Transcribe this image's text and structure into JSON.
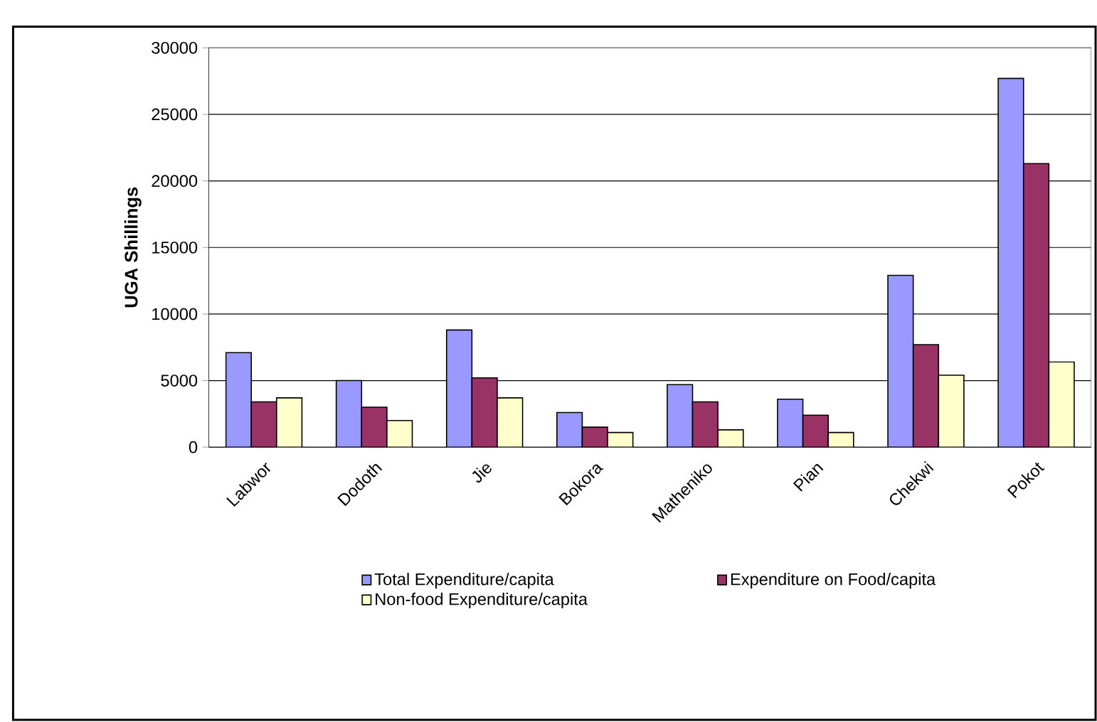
{
  "chart_data": {
    "type": "bar",
    "ylabel": "UGA Shillings",
    "categories": [
      "Labwor",
      "Dodoth",
      "Jie",
      "Bokora",
      "Matheniko",
      "Pian",
      "Chekwi",
      "Pokot"
    ],
    "series": [
      {
        "name": "Total Expenditure/capita",
        "color": "#9999ff",
        "values": [
          7100,
          5000,
          8800,
          2600,
          4700,
          3600,
          12900,
          27700
        ]
      },
      {
        "name": "Expenditure on Food/capita",
        "color": "#993366",
        "values": [
          3400,
          3000,
          5200,
          1500,
          3400,
          2400,
          7700,
          21300
        ]
      },
      {
        "name": "Non-food Expenditure/capita",
        "color": "#ffffcc",
        "values": [
          3700,
          2000,
          3700,
          1100,
          1300,
          1100,
          5400,
          6400
        ]
      }
    ],
    "ylim": [
      0,
      30000
    ],
    "yticks": [
      0,
      5000,
      10000,
      15000,
      20000,
      25000,
      30000
    ],
    "grid": "y",
    "legend": "bottom"
  }
}
